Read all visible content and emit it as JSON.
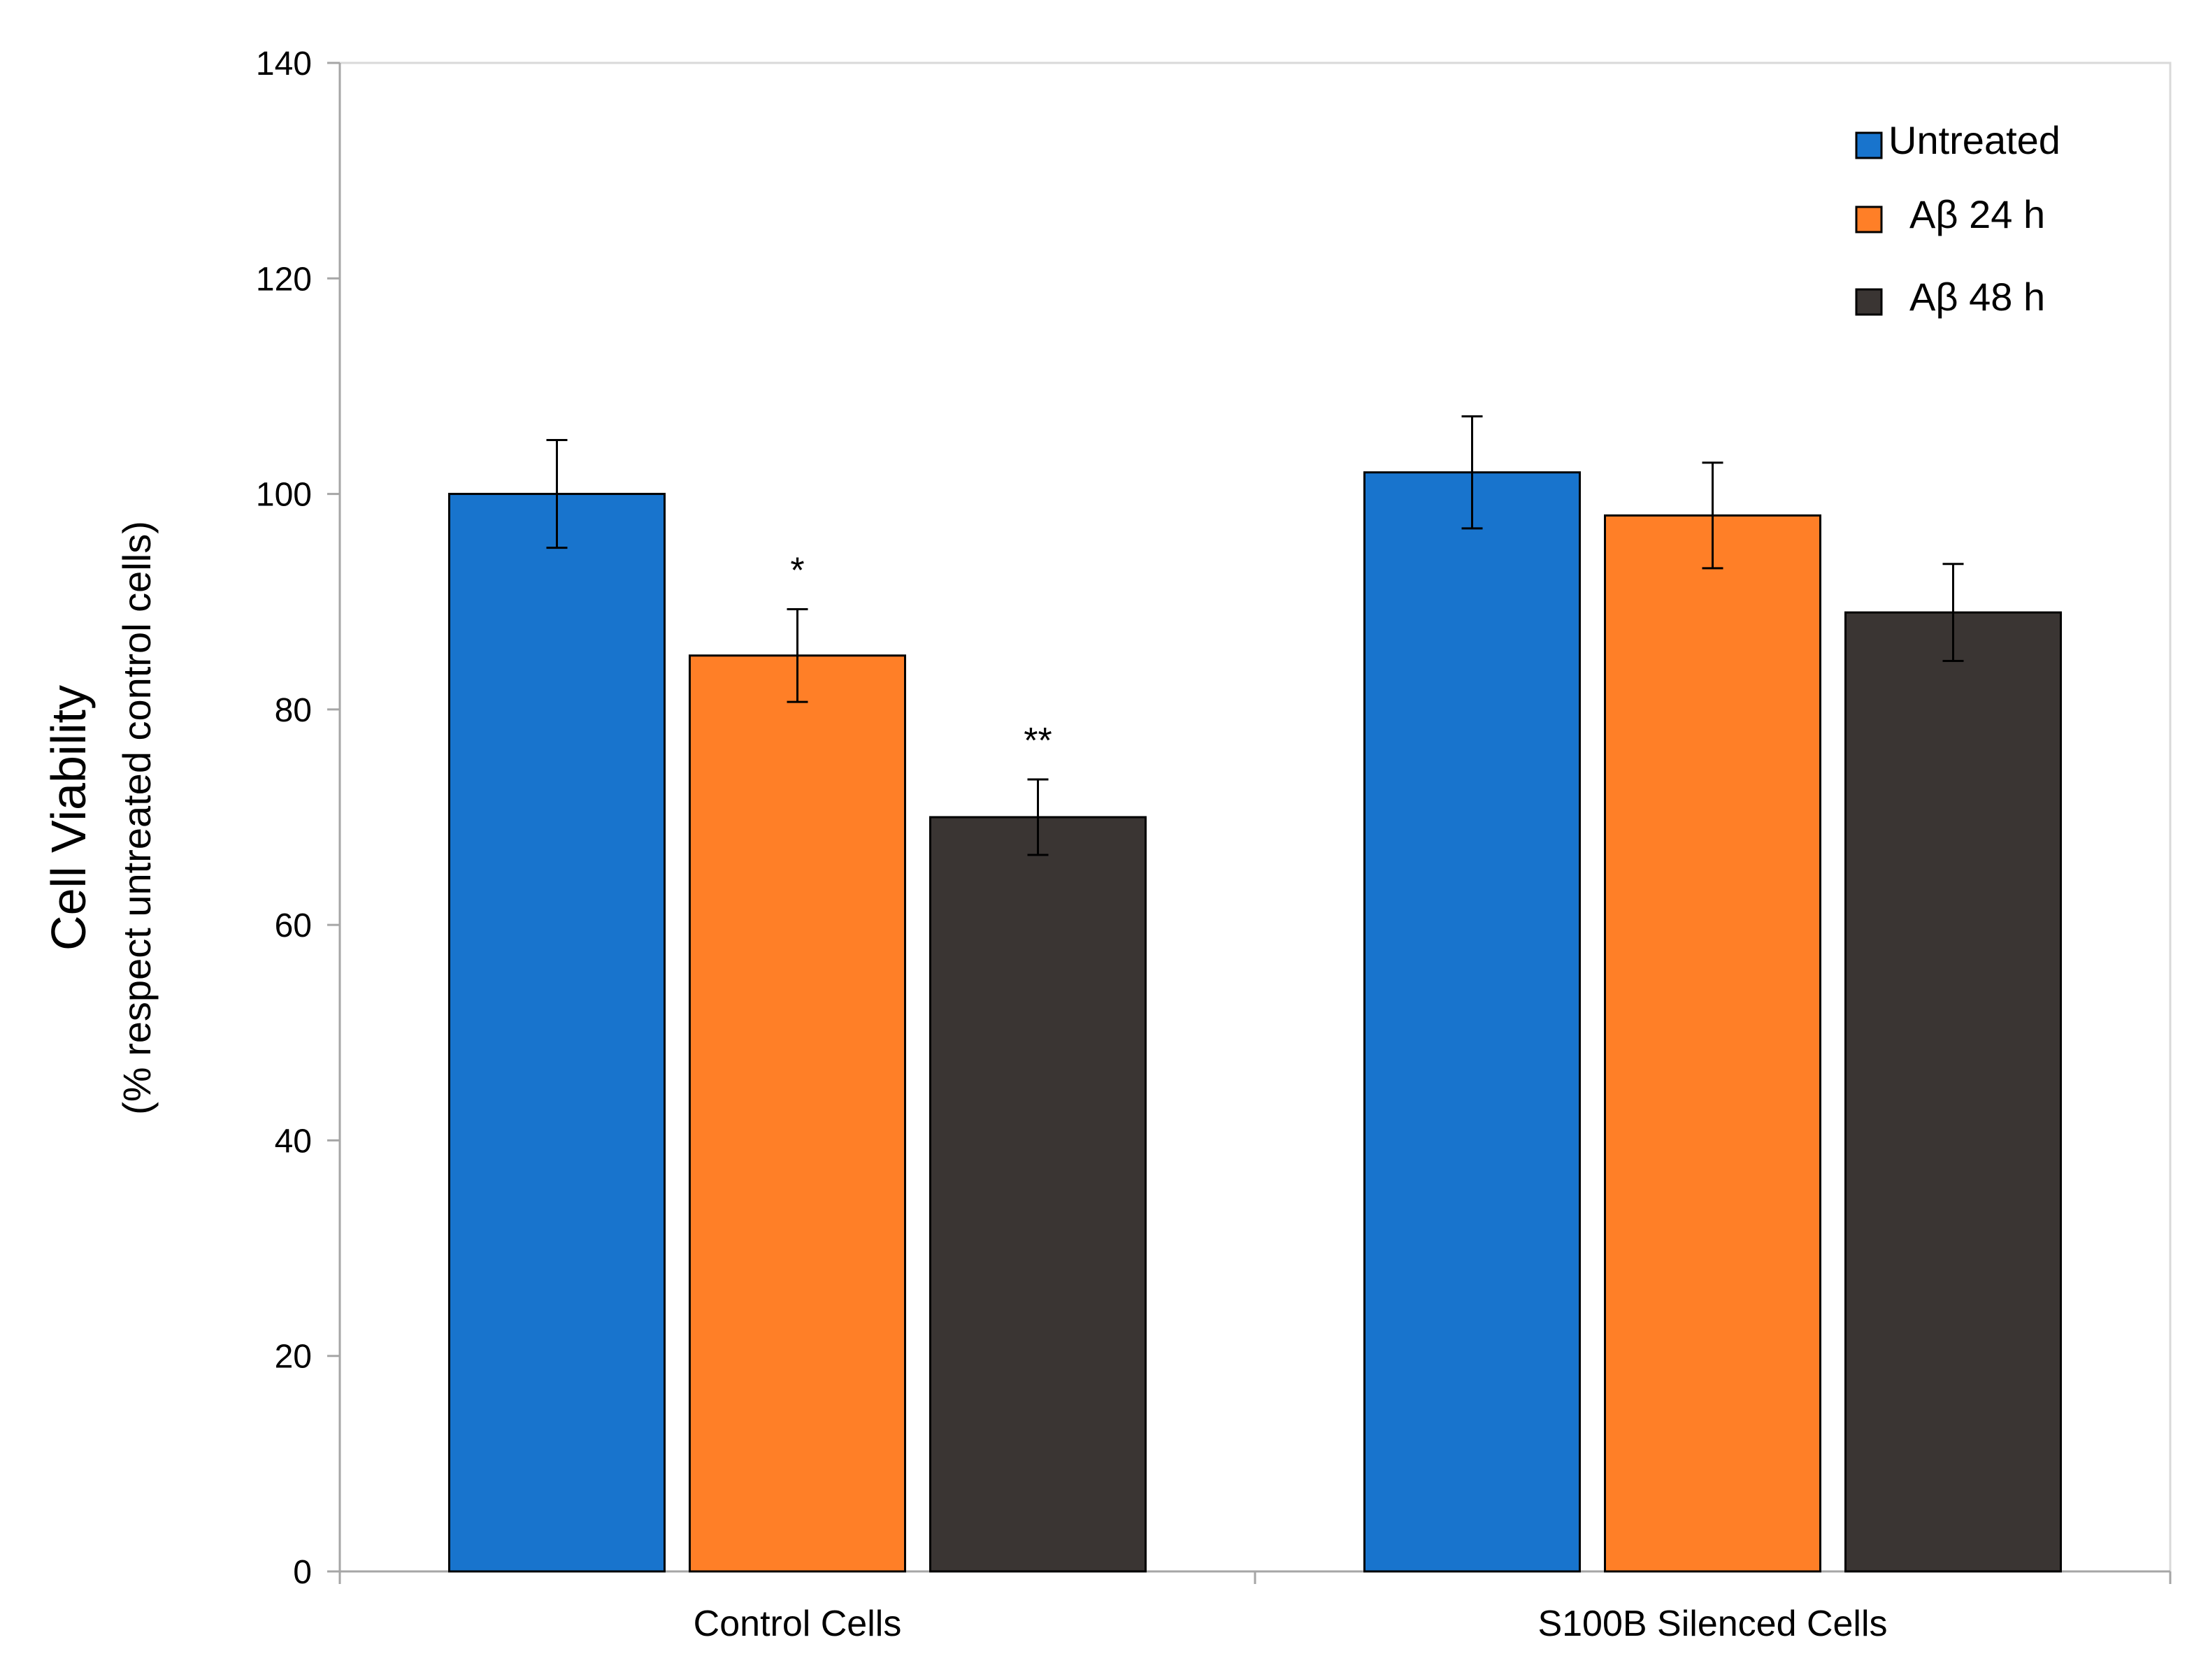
{
  "chart_data": {
    "type": "bar",
    "categories": [
      "Control Cells",
      "S100B Silenced Cells"
    ],
    "series": [
      {
        "name": "Untreated",
        "color": "#1874CD",
        "values": [
          100,
          102
        ],
        "errors": [
          5,
          5.2
        ],
        "annotations": [
          "",
          ""
        ]
      },
      {
        "name": "Aβ 24 h",
        "color": "#FF7F27",
        "values": [
          85,
          98
        ],
        "errors": [
          4.3,
          4.9
        ],
        "annotations": [
          "*",
          ""
        ]
      },
      {
        "name": "Aβ 48 h",
        "color": "#3A3533",
        "values": [
          70,
          89
        ],
        "errors": [
          3.5,
          4.5
        ],
        "annotations": [
          "**",
          ""
        ]
      }
    ],
    "ylabel": "Cell Viability",
    "ylabel_sub": "(% respect untreated control cells)",
    "xlabel": "",
    "ylim": [
      0,
      140
    ],
    "yticks": [
      0,
      20,
      40,
      60,
      80,
      100,
      120,
      140
    ],
    "legend_position": "top-right"
  }
}
